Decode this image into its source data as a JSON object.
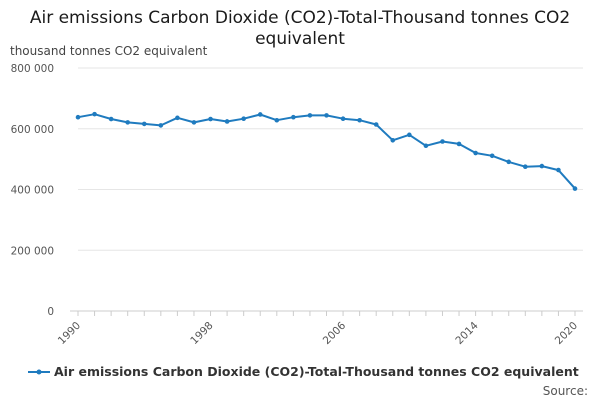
{
  "title": "Air emissions Carbon Dioxide (CO2)-Total-Thousand tonnes CO2 equivalent",
  "credits": "Source:",
  "colors": {
    "series": "#1f7bbf",
    "grid": "#e6e6e6",
    "axis": "#cccccc",
    "text": "#555555"
  },
  "chart_data": {
    "type": "line",
    "title": "Air emissions Carbon Dioxide (CO2)-Total-Thousand tonnes CO2 equivalent",
    "ylabel": "thousand tonnes CO2 equivalent",
    "xlabel": "",
    "x_tick_labels": [
      "1990",
      "1998",
      "2006",
      "2014",
      "2020"
    ],
    "y_tick_labels": [
      "0",
      "200 000",
      "400 000",
      "600 000",
      "800 000"
    ],
    "ylim": [
      0,
      800000
    ],
    "xlim": [
      1990,
      2020
    ],
    "grid": true,
    "legend_position": "bottom",
    "series": [
      {
        "name": "Air emissions Carbon Dioxide (CO2)-Total-Thousand tonnes CO2 equivalent",
        "x": [
          1990,
          1991,
          1992,
          1993,
          1994,
          1995,
          1996,
          1997,
          1998,
          1999,
          2000,
          2001,
          2002,
          2003,
          2004,
          2005,
          2006,
          2007,
          2008,
          2009,
          2010,
          2011,
          2012,
          2013,
          2014,
          2015,
          2016,
          2017,
          2018,
          2019,
          2020
        ],
        "values": [
          638000,
          648000,
          632000,
          621000,
          616000,
          611000,
          636000,
          621000,
          632000,
          624000,
          633000,
          647000,
          628000,
          638000,
          644000,
          644000,
          633000,
          628000,
          614000,
          562000,
          580000,
          544000,
          558000,
          550000,
          520000,
          511000,
          491000,
          475000,
          477000,
          464000,
          403000
        ]
      }
    ]
  }
}
